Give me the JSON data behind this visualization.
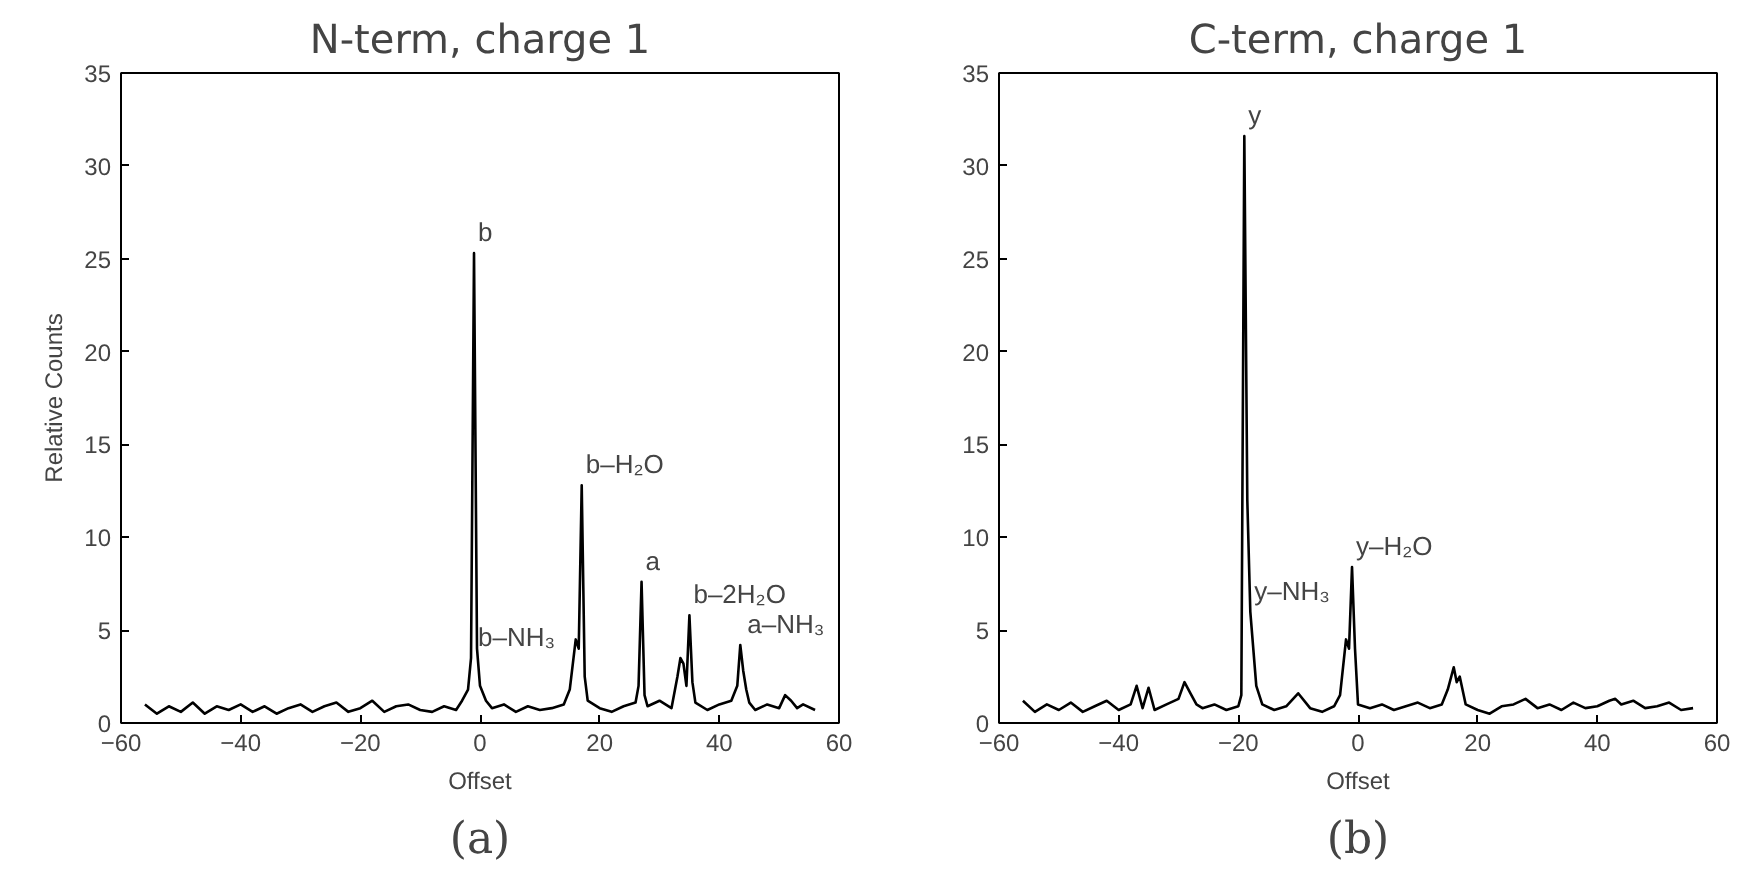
{
  "chart_data": [
    {
      "type": "line",
      "title": "N-term, charge 1",
      "xlabel": "Offset",
      "ylabel": "Relative Counts",
      "color": "#000000",
      "x": [
        -56,
        -54,
        -52,
        -50,
        -48,
        -46,
        -44,
        -42,
        -40,
        -38,
        -36,
        -34,
        -32,
        -30,
        -28,
        -26,
        -24,
        -22,
        -20,
        -18,
        -16,
        -14,
        -12,
        -10,
        -8,
        -6,
        -4,
        -3,
        -2,
        -1.5,
        -1,
        -0.5,
        0,
        1,
        2,
        4,
        6,
        8,
        10,
        12,
        14,
        15,
        16,
        16.5,
        17,
        17.5,
        18,
        20,
        22,
        24,
        26,
        26.5,
        27,
        27.5,
        28,
        30,
        32,
        33,
        33.5,
        34,
        34.5,
        35,
        35.5,
        36,
        38,
        40,
        42,
        43,
        43.5,
        44,
        44.5,
        45,
        46,
        48,
        50,
        51,
        52,
        53,
        54,
        56
      ],
      "values": [
        1.0,
        0.5,
        0.9,
        0.6,
        1.1,
        0.5,
        0.9,
        0.7,
        1.0,
        0.6,
        0.9,
        0.5,
        0.8,
        1.0,
        0.6,
        0.9,
        1.1,
        0.6,
        0.8,
        1.2,
        0.6,
        0.9,
        1.0,
        0.7,
        0.6,
        0.9,
        0.7,
        1.2,
        1.8,
        3.5,
        25.3,
        4.0,
        2.0,
        1.2,
        0.8,
        1.0,
        0.6,
        0.9,
        0.7,
        0.8,
        1.0,
        1.8,
        4.5,
        4.0,
        12.8,
        2.5,
        1.2,
        0.8,
        0.6,
        0.9,
        1.1,
        2.0,
        7.6,
        1.5,
        0.9,
        1.2,
        0.8,
        2.5,
        3.5,
        3.2,
        2.0,
        5.8,
        2.2,
        1.1,
        0.7,
        1.0,
        1.2,
        2.0,
        4.2,
        2.8,
        1.8,
        1.1,
        0.7,
        1.0,
        0.8,
        1.5,
        1.2,
        0.8,
        1.0,
        0.7
      ],
      "xlim": [
        -60,
        60
      ],
      "ylim": [
        0,
        35
      ],
      "xticks": [
        -60,
        -40,
        -20,
        0,
        20,
        40,
        60
      ],
      "yticks": [
        0,
        5,
        10,
        15,
        20,
        25,
        30,
        35
      ],
      "grid": false,
      "line_style": "solid",
      "annotations": [
        {
          "text": "b",
          "x": -1,
          "y": 25.3
        },
        {
          "text": "b–NH₃",
          "x": -1,
          "y": 3.5
        },
        {
          "text": "b–H₂O",
          "x": 17,
          "y": 12.8
        },
        {
          "text": "a",
          "x": 27,
          "y": 7.6
        },
        {
          "text": "b–2H₂O",
          "x": 35,
          "y": 5.8
        },
        {
          "text": "a–NH₃",
          "x": 44,
          "y": 4.2
        },
        "(a)"
      ]
    },
    {
      "type": "line",
      "title": "C-term, charge 1",
      "xlabel": "Offset",
      "color": "#000000",
      "x": [
        -56,
        -54,
        -52,
        -50,
        -48,
        -46,
        -44,
        -42,
        -40,
        -38,
        -37,
        -36,
        -35,
        -34,
        -32,
        -30,
        -29,
        -28,
        -27,
        -26,
        -24,
        -22,
        -20,
        -19.5,
        -19,
        -18.5,
        -18,
        -17,
        -16,
        -14,
        -12,
        -10,
        -8,
        -6,
        -4,
        -3,
        -2,
        -1.5,
        -1,
        -0.5,
        0,
        2,
        4,
        6,
        8,
        10,
        12,
        14,
        15,
        16,
        16.5,
        17,
        18,
        20,
        22,
        24,
        26,
        28,
        30,
        32,
        34,
        36,
        38,
        40,
        42,
        43,
        44,
        46,
        48,
        50,
        52,
        54,
        56
      ],
      "values": [
        1.2,
        0.6,
        1.0,
        0.7,
        1.1,
        0.6,
        0.9,
        1.2,
        0.7,
        1.0,
        2.0,
        0.8,
        1.9,
        0.7,
        1.0,
        1.3,
        2.2,
        1.6,
        1.0,
        0.8,
        1.0,
        0.7,
        0.9,
        1.5,
        31.6,
        12.0,
        6.0,
        2.0,
        1.0,
        0.7,
        0.9,
        1.6,
        0.8,
        0.6,
        0.9,
        1.5,
        4.5,
        4.0,
        8.4,
        4.0,
        1.0,
        0.8,
        1.0,
        0.7,
        0.9,
        1.1,
        0.8,
        1.0,
        1.8,
        3.0,
        2.2,
        2.5,
        1.0,
        0.7,
        0.5,
        0.9,
        1.0,
        1.3,
        0.8,
        1.0,
        0.7,
        1.1,
        0.8,
        0.9,
        1.2,
        1.3,
        1.0,
        1.2,
        0.8,
        0.9,
        1.1,
        0.7,
        0.8
      ],
      "xlim": [
        -60,
        60
      ],
      "ylim": [
        0,
        35
      ],
      "xticks": [
        -60,
        -40,
        -20,
        0,
        20,
        40,
        60
      ],
      "yticks": [
        0,
        5,
        10,
        15,
        20,
        25,
        30,
        35
      ],
      "grid": false,
      "line_style": "solid",
      "annotations": [
        {
          "text": "y",
          "x": -19,
          "y": 31.6
        },
        {
          "text": "y–NH₃",
          "x": -18,
          "y": 6.0
        },
        {
          "text": "y–H₂O",
          "x": -1,
          "y": 8.4
        },
        "(b)"
      ]
    }
  ]
}
